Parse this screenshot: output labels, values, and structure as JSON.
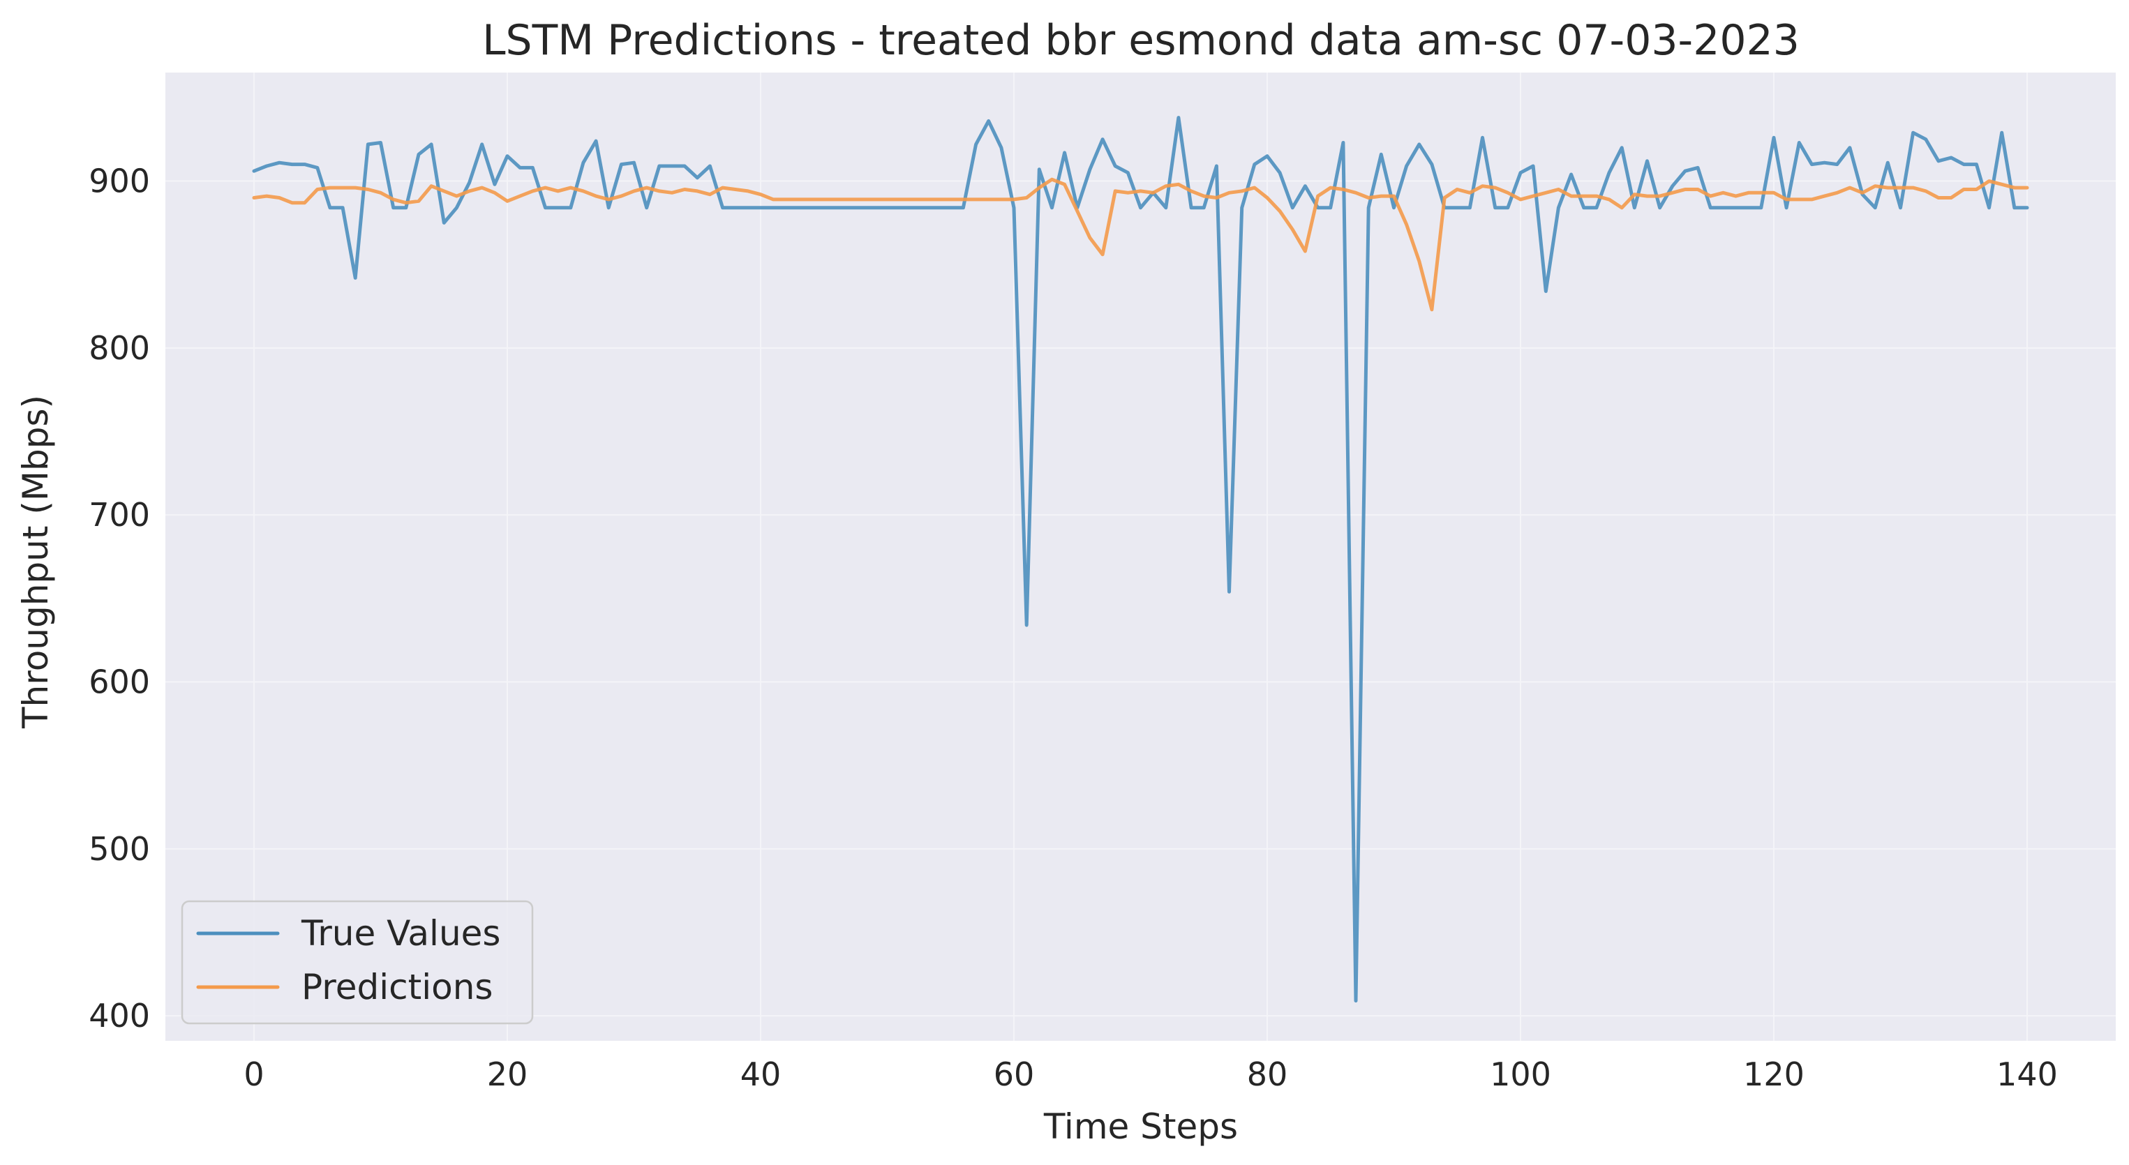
{
  "chart_data": {
    "type": "line",
    "title": "LSTM Predictions - treated bbr esmond data am-sc 07-03-2023",
    "xlabel": "Time Steps",
    "ylabel": "Throughput (Mbps)",
    "xlim": [
      -7,
      147
    ],
    "ylim": [
      385,
      965
    ],
    "xticks": [
      0,
      20,
      40,
      60,
      80,
      100,
      120,
      140
    ],
    "yticks": [
      400,
      500,
      600,
      700,
      800,
      900
    ],
    "grid": true,
    "legend_position": "lower-left",
    "series": [
      {
        "name": "True Values",
        "color": "#4c8fbe",
        "values": [
          906,
          909,
          911,
          910,
          910,
          908,
          884,
          884,
          842,
          922,
          923,
          884,
          884,
          916,
          922,
          875,
          884,
          899,
          922,
          898,
          915,
          908,
          908,
          884,
          884,
          884,
          911,
          924,
          884,
          910,
          911,
          884,
          909,
          909,
          909,
          902,
          909,
          884,
          884,
          884,
          884,
          884,
          884,
          884,
          884,
          884,
          884,
          884,
          884,
          884,
          884,
          884,
          884,
          884,
          884,
          884,
          884,
          922,
          936,
          920,
          884,
          634,
          907,
          884,
          917,
          884,
          907,
          925,
          909,
          905,
          884,
          893,
          884,
          938,
          884,
          884,
          909,
          654,
          884,
          910,
          915,
          905,
          884,
          897,
          884,
          884,
          923,
          409,
          884,
          916,
          884,
          909,
          922,
          910,
          884,
          884,
          884,
          926,
          884,
          884,
          905,
          909,
          834,
          884,
          904,
          884,
          884,
          905,
          920,
          884,
          912,
          884,
          897,
          906,
          908,
          884,
          884,
          884,
          884,
          884,
          926,
          884,
          923,
          910,
          911,
          910,
          920,
          892,
          884,
          911,
          884,
          929,
          925,
          912,
          914,
          910,
          910,
          884,
          929,
          884,
          884
        ]
      },
      {
        "name": "Predictions",
        "color": "#f49a4a",
        "values": [
          890,
          891,
          890,
          887,
          887,
          895,
          896,
          896,
          896,
          895,
          893,
          889,
          887,
          888,
          897,
          894,
          891,
          894,
          896,
          893,
          888,
          891,
          894,
          896,
          894,
          896,
          894,
          891,
          889,
          891,
          894,
          896,
          894,
          893,
          895,
          894,
          892,
          896,
          895,
          894,
          892,
          889,
          889,
          889,
          889,
          889,
          889,
          889,
          889,
          889,
          889,
          889,
          889,
          889,
          889,
          889,
          889,
          889,
          889,
          889,
          889,
          890,
          896,
          901,
          898,
          882,
          866,
          856,
          894,
          893,
          894,
          893,
          897,
          898,
          894,
          891,
          890,
          893,
          894,
          896,
          890,
          882,
          871,
          858,
          891,
          896,
          895,
          893,
          890,
          891,
          891,
          874,
          852,
          823,
          890,
          895,
          893,
          897,
          896,
          893,
          889,
          891,
          893,
          895,
          891,
          891,
          891,
          889,
          884,
          892,
          891,
          891,
          893,
          895,
          895,
          891,
          893,
          891,
          893,
          893,
          893,
          889,
          889,
          889,
          891,
          893,
          896,
          893,
          897,
          896,
          896,
          896,
          894,
          890,
          890,
          895,
          895,
          900,
          898,
          896,
          896
        ]
      }
    ]
  }
}
